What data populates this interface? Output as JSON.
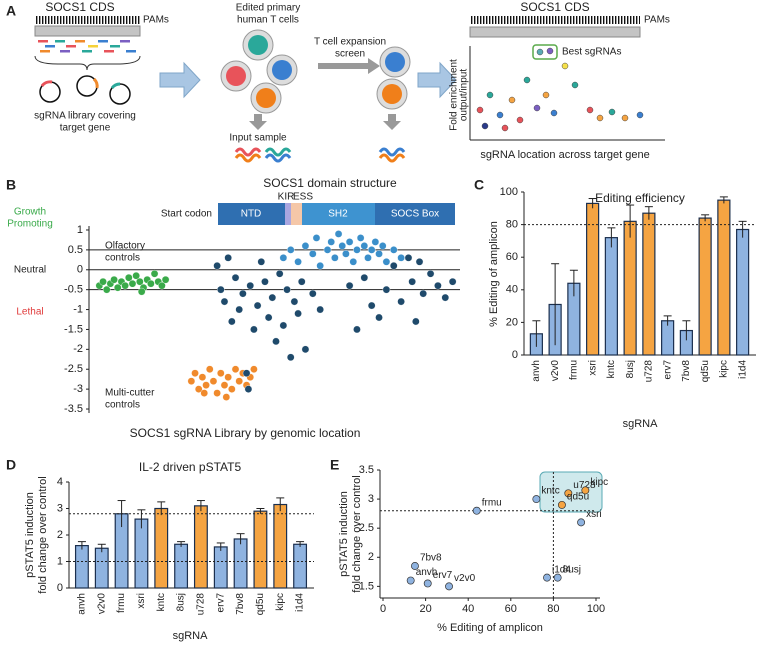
{
  "panel_labels": [
    "A",
    "B",
    "C",
    "D",
    "E"
  ],
  "diagram": {
    "left_title": "SOCS1 CDS",
    "left_pams": "PAMs",
    "library": [
      "sgRNA library covering",
      "target gene"
    ],
    "cells_title": [
      "Edited primary",
      "human T cells"
    ],
    "screen": [
      "T cell expansion",
      "screen"
    ],
    "input": "Input sample",
    "right_title": "SOCS1 CDS",
    "right_pams": "PAMs",
    "best": "Best sgRNAs",
    "y_axis": [
      "Fold enrichment",
      "output/input"
    ],
    "x_axis": "sgRNA location across target gene"
  },
  "chart_data": [
    {
      "type": "scatter",
      "title": "SOCS1 domain structure",
      "start_label": "Start codon",
      "domains": [
        "NTD",
        "KIR",
        "ESS",
        "SH2",
        "SOCS Box"
      ],
      "zone_labels": {
        "growth": [
          "Growth",
          "Promoting"
        ],
        "neutral": "Neutral",
        "lethal": "Lethal"
      },
      "annotations": {
        "olfactory": [
          "Olfactory",
          "controls"
        ],
        "multicutter": [
          "Multi-cutter",
          "controls"
        ]
      },
      "xlabel": "SOCS1 sgRNA Library by genomic location",
      "xlim": [
        0,
        100
      ],
      "ylim": [
        -3.6,
        1.1
      ],
      "yticks": [
        1,
        0.5,
        0,
        -0.5,
        -1,
        -1.5,
        -2,
        -2.5,
        -3,
        -3.5
      ],
      "hlines": [
        0.5,
        0,
        -0.5
      ],
      "series": [
        {
          "color": "#3aaa4a",
          "x": [
            2,
            3,
            4,
            5,
            6,
            7,
            8,
            9,
            10,
            11,
            12,
            13,
            14,
            15,
            16,
            17,
            18,
            19,
            20,
            13.5
          ],
          "values": [
            -0.4,
            -0.3,
            -0.5,
            -0.35,
            -0.25,
            -0.45,
            -0.3,
            -0.4,
            -0.2,
            -0.35,
            -0.15,
            -0.3,
            -0.45,
            -0.25,
            -0.35,
            -0.1,
            -0.3,
            -0.4,
            -0.25,
            -0.55
          ]
        },
        {
          "color": "#f08a2c",
          "x": [
            27,
            28,
            29,
            30,
            31,
            32,
            33,
            34,
            35,
            36,
            37,
            38,
            39,
            40,
            41,
            42,
            43,
            44,
            30.5,
            36.5
          ],
          "values": [
            -2.8,
            -2.6,
            -3.0,
            -2.7,
            -2.9,
            -2.5,
            -2.8,
            -3.1,
            -2.6,
            -2.9,
            -2.7,
            -3.0,
            -2.5,
            -2.8,
            -2.6,
            -2.9,
            -2.7,
            -2.5,
            -3.1,
            -3.2
          ]
        },
        {
          "color": "#1f4a6b",
          "x": [
            34,
            35,
            36,
            37,
            38,
            39,
            40,
            41,
            42,
            42.5,
            43,
            44,
            45,
            46,
            47,
            48,
            49,
            50,
            51,
            52,
            53,
            54,
            55,
            56,
            57,
            58,
            60,
            62,
            70,
            72,
            74,
            76,
            78,
            80,
            82,
            84,
            86,
            87,
            88,
            89,
            90,
            92,
            94,
            96,
            98
          ],
          "values": [
            0.1,
            -0.5,
            -0.8,
            0.3,
            -1.3,
            -0.2,
            -1.0,
            -0.6,
            -2.6,
            -3.0,
            -0.4,
            -1.5,
            -0.9,
            0.2,
            -0.3,
            -1.2,
            -0.7,
            -1.8,
            -0.1,
            -1.4,
            -0.5,
            -2.2,
            -0.8,
            -1.1,
            -0.3,
            -2.0,
            -0.6,
            -1.0,
            -0.4,
            -1.5,
            -0.2,
            -0.9,
            -1.2,
            -0.5,
            0.1,
            -0.8,
            0.3,
            -0.3,
            -1.3,
            0.2,
            -0.6,
            -0.1,
            -0.4,
            -0.7,
            -0.3
          ]
        },
        {
          "color": "#3b8fca",
          "x": [
            52,
            54,
            56,
            58,
            60,
            61,
            62,
            64,
            65,
            66,
            67,
            68,
            69,
            70,
            71,
            72,
            73,
            74,
            75,
            76,
            77,
            78,
            79,
            80,
            82,
            84
          ],
          "values": [
            0.3,
            0.5,
            0.2,
            0.6,
            0.4,
            0.8,
            0.1,
            0.5,
            0.7,
            0.3,
            0.9,
            0.6,
            0.4,
            0.7,
            0.2,
            0.5,
            0.8,
            0.6,
            0.3,
            0.5,
            0.7,
            0.4,
            0.6,
            0.2,
            0.5,
            0.3
          ]
        }
      ]
    },
    {
      "type": "bar",
      "title": "Editing efficiency",
      "ylabel": "% Editing of amplicon",
      "xlabel": "sgRNA",
      "categories": [
        "anvh",
        "v2v0",
        "frmu",
        "xsri",
        "kntc",
        "8usj",
        "u728",
        "erv7",
        "7bv8",
        "qd5u",
        "kipc",
        "i1d4"
      ],
      "values": [
        13,
        31,
        44,
        93,
        72,
        82,
        87,
        21,
        15,
        84,
        95,
        77
      ],
      "errors": [
        8,
        25,
        8,
        3,
        6,
        10,
        4,
        3,
        6,
        2,
        2,
        5
      ],
      "colors": [
        "#8fb3e0",
        "#8fb3e0",
        "#8fb3e0",
        "#f5a442",
        "#8fb3e0",
        "#f5a442",
        "#f5a442",
        "#8fb3e0",
        "#8fb3e0",
        "#f5a442",
        "#f5a442",
        "#8fb3e0"
      ],
      "ylim": [
        0,
        100
      ],
      "yticks": [
        0,
        20,
        40,
        60,
        80,
        100
      ],
      "reference_lines": [
        80
      ]
    },
    {
      "type": "bar",
      "title": "IL-2 driven pSTAT5",
      "ylabel": [
        "pSTAT5 induction",
        "fold change over control"
      ],
      "xlabel": "sgRNA",
      "categories": [
        "anvh",
        "v2v0",
        "frmu",
        "xsri",
        "kntc",
        "8usj",
        "u728",
        "erv7",
        "7bv8",
        "qd5u",
        "kipc",
        "i1d4"
      ],
      "values": [
        1.6,
        1.5,
        2.8,
        2.6,
        3.0,
        1.65,
        3.1,
        1.55,
        1.85,
        2.9,
        3.15,
        1.65
      ],
      "errors": [
        0.15,
        0.15,
        0.5,
        0.35,
        0.25,
        0.1,
        0.2,
        0.15,
        0.2,
        0.1,
        0.25,
        0.1
      ],
      "colors": [
        "#8fb3e0",
        "#8fb3e0",
        "#8fb3e0",
        "#8fb3e0",
        "#f5a442",
        "#8fb3e0",
        "#f5a442",
        "#8fb3e0",
        "#8fb3e0",
        "#f5a442",
        "#f5a442",
        "#8fb3e0"
      ],
      "ylim": [
        0,
        4
      ],
      "yticks": [
        0,
        1,
        2,
        3,
        4
      ],
      "reference_lines": [
        2.8,
        1
      ]
    },
    {
      "type": "scatter",
      "xlabel": "% Editing of amplicon",
      "ylabel": [
        "pSTAT5 induction",
        "fold change over control"
      ],
      "labels": [
        "anvh",
        "v2v0",
        "frmu",
        "xsri",
        "kntc",
        "8usj",
        "u728",
        "erv7",
        "7bv8",
        "qd5u",
        "kipc",
        "i1d4"
      ],
      "x": [
        13,
        31,
        44,
        93,
        72,
        82,
        87,
        21,
        15,
        84,
        95,
        77
      ],
      "values": [
        1.6,
        1.5,
        2.8,
        2.6,
        3.0,
        1.65,
        3.1,
        1.55,
        1.85,
        2.9,
        3.15,
        1.65
      ],
      "colors": [
        "#8fb3e0",
        "#8fb3e0",
        "#8fb3e0",
        "#8fb3e0",
        "#8fb3e0",
        "#8fb3e0",
        "#f5a442",
        "#8fb3e0",
        "#8fb3e0",
        "#f5a442",
        "#f5a442",
        "#8fb3e0"
      ],
      "xlim": [
        0,
        100
      ],
      "xticks": [
        0,
        20,
        40,
        60,
        80,
        100
      ],
      "ylim": [
        1.3,
        3.5
      ],
      "yticks": [
        1.5,
        2,
        2.5,
        3,
        3.5
      ],
      "reference_x": 80,
      "reference_y": 2.8
    }
  ]
}
